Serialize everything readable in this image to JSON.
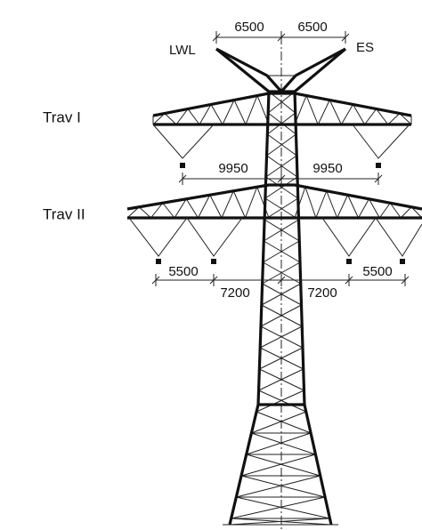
{
  "top": {
    "dims": [
      6500,
      6500
    ],
    "left_label": "LWL",
    "right_label": "ES"
  },
  "trav1": {
    "label": "Trav I",
    "dims": [
      9950,
      9950
    ]
  },
  "trav2": {
    "label": "Trav II",
    "dims": [
      5500,
      7200,
      7200,
      5500
    ]
  }
}
